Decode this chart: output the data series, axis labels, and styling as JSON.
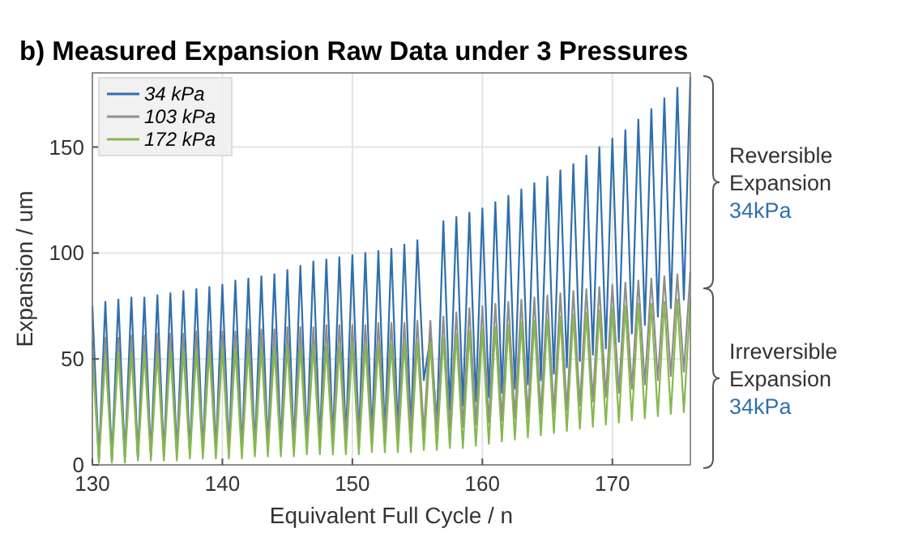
{
  "chart_data": {
    "type": "line",
    "title": "b) Measured Expansion Raw Data under 3 Pressures",
    "xlabel": "Equivalent Full Cycle / n",
    "ylabel": "Expansion / um",
    "x": [
      130,
      130.5,
      131,
      131.5,
      132,
      132.5,
      133,
      133.5,
      134,
      134.5,
      135,
      135.5,
      136,
      136.5,
      137,
      137.5,
      138,
      138.5,
      139,
      139.5,
      140,
      140.5,
      141,
      141.5,
      142,
      142.5,
      143,
      143.5,
      144,
      144.5,
      145,
      145.5,
      146,
      146.5,
      147,
      147.5,
      148,
      148.5,
      149,
      149.5,
      150,
      150.5,
      151,
      151.5,
      152,
      152.5,
      153,
      153.5,
      154,
      154.5,
      155,
      155.5,
      156,
      156.5,
      157,
      157.5,
      158,
      158.5,
      159,
      159.5,
      160,
      160.5,
      161,
      161.5,
      162,
      162.5,
      163,
      163.5,
      164,
      164.5,
      165,
      165.5,
      166,
      166.5,
      167,
      167.5,
      168,
      168.5,
      169,
      169.5,
      170,
      170.5,
      171,
      171.5,
      172,
      172.5,
      173,
      173.5,
      174,
      174.5,
      175,
      175.5,
      176
    ],
    "series": [
      {
        "name": "34 kPa",
        "color": "#2f6fad",
        "values": [
          75,
          2,
          77,
          2,
          78,
          3,
          79,
          3,
          79,
          4,
          80,
          4,
          81,
          5,
          82,
          5,
          83,
          6,
          84,
          6,
          85,
          7,
          87,
          7,
          88,
          8,
          89,
          8,
          90,
          9,
          92,
          9,
          94,
          10,
          96,
          10,
          97,
          11,
          98,
          12,
          99,
          12,
          100,
          13,
          101,
          14,
          102,
          15,
          104,
          16,
          106,
          40,
          60,
          20,
          115,
          26,
          117,
          28,
          119,
          30,
          121,
          32,
          124,
          34,
          127,
          36,
          130,
          38,
          133,
          40,
          136,
          43,
          139,
          46,
          142,
          49,
          146,
          52,
          150,
          55,
          154,
          58,
          158,
          62,
          163,
          66,
          168,
          70,
          173,
          74,
          178,
          78,
          183
        ]
      },
      {
        "name": "103 kPa",
        "color": "#8e8e8e",
        "values": [
          58,
          3,
          60,
          3,
          60,
          4,
          61,
          4,
          61,
          5,
          62,
          5,
          62,
          6,
          62,
          6,
          63,
          7,
          63,
          7,
          63,
          8,
          63,
          8,
          64,
          9,
          64,
          9,
          64,
          10,
          65,
          10,
          65,
          11,
          65,
          11,
          66,
          12,
          66,
          12,
          66,
          13,
          66,
          13,
          67,
          14,
          67,
          14,
          67,
          15,
          68,
          15,
          68,
          16,
          70,
          17,
          72,
          18,
          74,
          19,
          75,
          20,
          76,
          21,
          77,
          22,
          78,
          23,
          79,
          24,
          80,
          25,
          81,
          26,
          82,
          28,
          83,
          30,
          84,
          32,
          85,
          34,
          86,
          36,
          87,
          38,
          88,
          40,
          89,
          42,
          90,
          44,
          91
        ]
      },
      {
        "name": "172 kPa",
        "color": "#86b84e",
        "values": [
          52,
          1,
          52,
          1,
          53,
          1,
          53,
          2,
          53,
          2,
          53,
          2,
          54,
          2,
          54,
          3,
          54,
          3,
          54,
          3,
          55,
          3,
          55,
          3,
          55,
          4,
          55,
          4,
          55,
          4,
          56,
          4,
          56,
          5,
          56,
          5,
          56,
          5,
          56,
          5,
          57,
          5,
          57,
          6,
          57,
          6,
          57,
          6,
          58,
          6,
          58,
          7,
          58,
          7,
          60,
          8,
          62,
          8,
          63,
          9,
          64,
          10,
          65,
          11,
          66,
          12,
          67,
          13,
          68,
          14,
          69,
          15,
          70,
          16,
          71,
          17,
          72,
          18,
          73,
          19,
          74,
          20,
          75,
          21,
          76,
          22,
          76,
          23,
          77,
          24,
          78,
          25,
          78
        ]
      }
    ],
    "xlim": [
      130,
      176
    ],
    "xticks": [
      130,
      140,
      150,
      160,
      170
    ],
    "ylim": [
      0,
      185
    ],
    "yticks": [
      0,
      50,
      100,
      150
    ],
    "grid": true,
    "legend": "top left",
    "line_style": "solid",
    "marker": "none",
    "annotations": [
      "Reversible\nExpansion\n34kPa",
      "Irreversible\nExpansion\n34kPa"
    ]
  }
}
